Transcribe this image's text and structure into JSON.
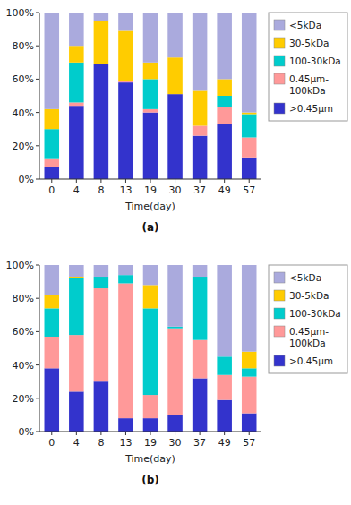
{
  "chart_data": [
    {
      "type": "bar",
      "stacked": true,
      "title": "(a)",
      "xlabel": "Time(day)",
      "categories": [
        "0",
        "4",
        "8",
        "13",
        "19",
        "30",
        "37",
        "49",
        "57"
      ],
      "series": [
        {
          "name": ">0.45μm",
          "color": "#3333CC",
          "values": [
            0.07,
            0.44,
            0.69,
            0.58,
            0.4,
            0.51,
            0.26,
            0.33,
            0.13
          ]
        },
        {
          "name": "0.45μm-\n100kDa",
          "color": "#FF9999",
          "values": [
            0.05,
            0.02,
            0.0,
            0.01,
            0.02,
            0.0,
            0.06,
            0.1,
            0.12
          ]
        },
        {
          "name": "100-30kDa",
          "color": "#00CCCC",
          "values": [
            0.18,
            0.24,
            0.0,
            0.0,
            0.18,
            0.0,
            0.0,
            0.07,
            0.14
          ]
        },
        {
          "name": "30-5kDa",
          "color": "#FFCC00",
          "values": [
            0.12,
            0.1,
            0.26,
            0.3,
            0.1,
            0.22,
            0.21,
            0.1,
            0.01
          ]
        },
        {
          "name": "<5kDa",
          "color": "#AAAADD",
          "values": [
            0.58,
            0.2,
            0.05,
            0.11,
            0.3,
            0.27,
            0.47,
            0.4,
            0.6
          ]
        }
      ],
      "ylim": [
        0,
        1.0
      ],
      "yticks": [
        {
          "value": 0,
          "label": "0%"
        },
        {
          "value": 0.2,
          "label": "20%"
        },
        {
          "value": 0.4,
          "label": "40%"
        },
        {
          "value": 0.6,
          "label": "60%"
        },
        {
          "value": 0.8,
          "label": "80%"
        },
        {
          "value": 1.0,
          "label": "100%"
        }
      ],
      "legend": "right"
    },
    {
      "type": "bar",
      "stacked": true,
      "title": "(b)",
      "xlabel": "Time(day)",
      "categories": [
        "0",
        "4",
        "8",
        "13",
        "19",
        "30",
        "37",
        "49",
        "57"
      ],
      "series": [
        {
          "name": ">0.45μm",
          "color": "#3333CC",
          "values": [
            0.38,
            0.24,
            0.3,
            0.08,
            0.08,
            0.1,
            0.32,
            0.19,
            0.11
          ]
        },
        {
          "name": "0.45μm-\n100kDa",
          "color": "#FF9999",
          "values": [
            0.19,
            0.34,
            0.56,
            0.81,
            0.14,
            0.52,
            0.23,
            0.15,
            0.22
          ]
        },
        {
          "name": "100-30kDa",
          "color": "#00CCCC",
          "values": [
            0.17,
            0.34,
            0.07,
            0.05,
            0.52,
            0.01,
            0.38,
            0.11,
            0.05
          ]
        },
        {
          "name": "30-5kDa",
          "color": "#FFCC00",
          "values": [
            0.08,
            0.01,
            0.0,
            0.0,
            0.14,
            0.0,
            0.0,
            0.0,
            0.1
          ]
        },
        {
          "name": "<5kDa",
          "color": "#AAAADD",
          "values": [
            0.18,
            0.07,
            0.07,
            0.06,
            0.12,
            0.37,
            0.07,
            0.55,
            0.52
          ]
        }
      ],
      "ylim": [
        0,
        1.0
      ],
      "yticks": [
        {
          "value": 0,
          "label": "0%"
        },
        {
          "value": 0.2,
          "label": "20%"
        },
        {
          "value": 0.4,
          "label": "40%"
        },
        {
          "value": 0.6,
          "label": "60%"
        },
        {
          "value": 0.8,
          "label": "80%"
        },
        {
          "value": 1.0,
          "label": "100%"
        }
      ],
      "legend": "right"
    }
  ]
}
